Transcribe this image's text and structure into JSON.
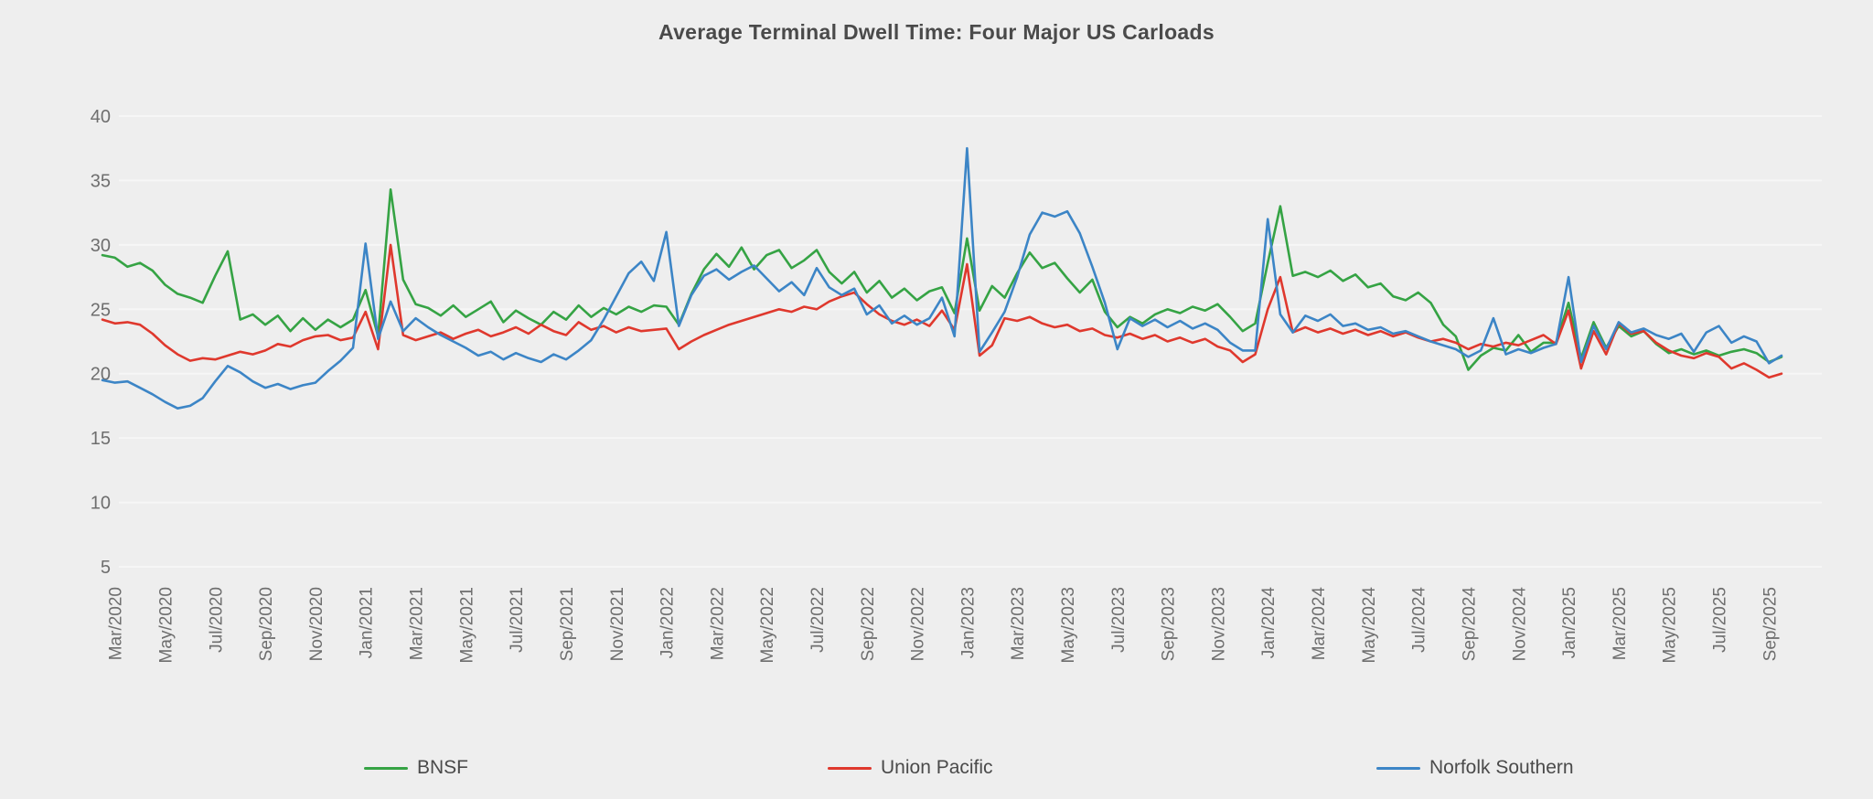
{
  "title": "Average Terminal Dwell Time: Four Major US Carloads",
  "colors": {
    "background": "#eeeeee",
    "gridline": "#f6f6f6",
    "axis_text": "#6e6e6e",
    "title_text": "#4a4a4a",
    "legend_text": "#4a4a4a"
  },
  "chart_data": {
    "type": "line",
    "title": "Average Terminal Dwell Time: Four Major US Carloads",
    "xlabel": "",
    "ylabel": "",
    "ylim": [
      5,
      40
    ],
    "y_ticks": [
      5,
      10,
      15,
      20,
      25,
      30,
      35,
      40
    ],
    "grid": "horizontal",
    "legend_position": "bottom",
    "x_unit": "weeks, Feb/2020 - Oct/2025 (two points per month)",
    "x_tick_labels": [
      "Mar/2020",
      "May/2020",
      "Jul/2020",
      "Sep/2020",
      "Nov/2020",
      "Jan/2021",
      "Mar/2021",
      "May/2021",
      "Jul/2021",
      "Sep/2021",
      "Nov/2021",
      "Jan/2022",
      "Mar/2022",
      "May/2022",
      "Jul/2022",
      "Sep/2022",
      "Nov/2022",
      "Jan/2023",
      "Mar/2023",
      "May/2023",
      "Jul/2023",
      "Sep/2023",
      "Nov/2023",
      "Jan/2024",
      "Mar/2024",
      "May/2024",
      "Jul/2024",
      "Sep/2024",
      "Nov/2024",
      "Jan/2025",
      "Mar/2025",
      "May/2025",
      "Jul/2025",
      "Sep/2025"
    ],
    "x_tick_start_index": 1,
    "x_tick_step": 4,
    "series": [
      {
        "name": "BNSF",
        "color": "#35a344",
        "values": [
          29.2,
          29.0,
          28.3,
          28.6,
          28.0,
          26.9,
          26.2,
          25.9,
          25.5,
          27.6,
          29.5,
          24.2,
          24.6,
          23.8,
          24.5,
          23.3,
          24.3,
          23.4,
          24.2,
          23.6,
          24.2,
          26.5,
          22.9,
          34.3,
          27.3,
          25.4,
          25.1,
          24.5,
          25.3,
          24.4,
          25.0,
          25.6,
          24.0,
          24.9,
          24.3,
          23.8,
          24.8,
          24.2,
          25.3,
          24.4,
          25.1,
          24.6,
          25.2,
          24.8,
          25.3,
          25.2,
          23.8,
          26.2,
          28.1,
          29.3,
          28.3,
          29.8,
          28.1,
          29.2,
          29.6,
          28.2,
          28.8,
          29.6,
          27.9,
          27.0,
          27.9,
          26.3,
          27.2,
          25.9,
          26.6,
          25.7,
          26.4,
          26.7,
          24.7,
          30.5,
          24.9,
          26.8,
          25.9,
          27.8,
          29.4,
          28.2,
          28.6,
          27.4,
          26.3,
          27.3,
          24.8,
          23.6,
          24.4,
          23.9,
          24.6,
          25.0,
          24.7,
          25.2,
          24.9,
          25.4,
          24.4,
          23.3,
          23.9,
          28.6,
          33.0,
          27.6,
          27.9,
          27.5,
          28.0,
          27.2,
          27.7,
          26.7,
          27.0,
          26.0,
          25.7,
          26.3,
          25.5,
          23.8,
          22.9,
          20.3,
          21.4,
          22.0,
          21.8,
          23.0,
          21.7,
          22.4,
          22.4,
          25.5,
          21.2,
          24.0,
          22.0,
          23.7,
          22.9,
          23.3,
          22.3,
          21.6,
          21.9,
          21.5,
          21.8,
          21.4,
          21.7,
          21.9,
          21.6,
          20.9,
          21.3
        ]
      },
      {
        "name": "Union Pacific",
        "color": "#df382d",
        "values": [
          24.2,
          23.9,
          24.0,
          23.8,
          23.1,
          22.2,
          21.5,
          21.0,
          21.2,
          21.1,
          21.4,
          21.7,
          21.5,
          21.8,
          22.3,
          22.1,
          22.6,
          22.9,
          23.0,
          22.6,
          22.8,
          24.8,
          21.9,
          30.0,
          23.0,
          22.6,
          22.9,
          23.2,
          22.7,
          23.1,
          23.4,
          22.9,
          23.2,
          23.6,
          23.1,
          23.8,
          23.3,
          23.0,
          24.0,
          23.4,
          23.7,
          23.2,
          23.6,
          23.3,
          23.4,
          23.5,
          21.9,
          22.5,
          23.0,
          23.4,
          23.8,
          24.1,
          24.4,
          24.7,
          25.0,
          24.8,
          25.2,
          25.0,
          25.6,
          26.0,
          26.3,
          25.4,
          24.6,
          24.1,
          23.8,
          24.2,
          23.7,
          24.9,
          23.4,
          28.5,
          21.4,
          22.2,
          24.3,
          24.1,
          24.4,
          23.9,
          23.6,
          23.8,
          23.3,
          23.5,
          23.0,
          22.8,
          23.1,
          22.7,
          23.0,
          22.5,
          22.8,
          22.4,
          22.7,
          22.1,
          21.8,
          20.9,
          21.5,
          25.0,
          27.5,
          23.2,
          23.6,
          23.2,
          23.5,
          23.1,
          23.4,
          23.0,
          23.3,
          22.9,
          23.2,
          22.8,
          22.5,
          22.7,
          22.4,
          21.9,
          22.3,
          22.1,
          22.4,
          22.2,
          22.6,
          23.0,
          22.3,
          24.9,
          20.4,
          23.3,
          21.5,
          23.9,
          23.1,
          23.3,
          22.4,
          21.8,
          21.4,
          21.2,
          21.6,
          21.3,
          20.4,
          20.8,
          20.3,
          19.7,
          20.0
        ]
      },
      {
        "name": "Norfolk Southern",
        "color": "#3c85c6",
        "values": [
          19.5,
          19.3,
          19.4,
          18.9,
          18.4,
          17.8,
          17.3,
          17.5,
          18.1,
          19.4,
          20.6,
          20.1,
          19.4,
          18.9,
          19.2,
          18.8,
          19.1,
          19.3,
          20.2,
          21.0,
          22.0,
          30.1,
          22.7,
          25.6,
          23.3,
          24.3,
          23.6,
          23.0,
          22.5,
          22.0,
          21.4,
          21.7,
          21.1,
          21.6,
          21.2,
          20.9,
          21.5,
          21.1,
          21.8,
          22.6,
          24.2,
          26.0,
          27.8,
          28.7,
          27.2,
          31.0,
          23.7,
          26.1,
          27.6,
          28.1,
          27.3,
          27.9,
          28.4,
          27.4,
          26.4,
          27.1,
          26.1,
          28.2,
          26.7,
          26.1,
          26.6,
          24.6,
          25.3,
          23.9,
          24.5,
          23.8,
          24.3,
          25.9,
          22.9,
          37.5,
          21.7,
          23.2,
          24.8,
          27.5,
          30.8,
          32.5,
          32.2,
          32.6,
          30.9,
          28.3,
          25.5,
          21.9,
          24.3,
          23.7,
          24.2,
          23.6,
          24.1,
          23.5,
          23.9,
          23.4,
          22.4,
          21.8,
          21.8,
          32.0,
          24.6,
          23.2,
          24.5,
          24.1,
          24.6,
          23.7,
          23.9,
          23.4,
          23.6,
          23.1,
          23.3,
          22.9,
          22.5,
          22.2,
          21.9,
          21.3,
          21.8,
          24.3,
          21.5,
          21.9,
          21.6,
          22.0,
          22.3,
          27.5,
          20.9,
          23.7,
          21.9,
          24.0,
          23.2,
          23.5,
          23.0,
          22.7,
          23.1,
          21.7,
          23.2,
          23.7,
          22.4,
          22.9,
          22.5,
          20.8,
          21.4
        ]
      }
    ]
  }
}
